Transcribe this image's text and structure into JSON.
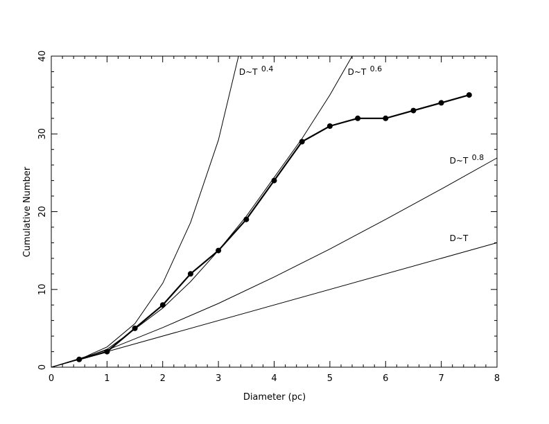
{
  "chart_data": {
    "type": "line",
    "xlabel": "Diameter (pc)",
    "ylabel": "Cumulative Number",
    "xlim": [
      0,
      8
    ],
    "ylim": [
      0,
      40
    ],
    "xticks": [
      "0",
      "1",
      "2",
      "3",
      "4",
      "5",
      "6",
      "7",
      "8"
    ],
    "yticks": [
      "0",
      "10",
      "20",
      "30",
      "40"
    ],
    "grid": false,
    "observed": {
      "x": [
        0.5,
        1.0,
        1.5,
        2.0,
        2.5,
        3.0,
        3.5,
        4.0,
        4.5,
        5.0,
        5.5,
        6.0,
        6.5,
        7.0,
        7.5
      ],
      "y": [
        1,
        2,
        5,
        8,
        12,
        15,
        19,
        24,
        29,
        31,
        32,
        32,
        33,
        34,
        35
      ]
    },
    "models": [
      {
        "label": "D~T",
        "exponent": "0.4",
        "x": [
          0,
          0.5,
          1.0,
          1.5,
          2.0,
          2.5,
          3.0,
          3.36
        ],
        "y": [
          0,
          1.0,
          2.6,
          5.6,
          10.8,
          18.6,
          29.2,
          40
        ]
      },
      {
        "label": "D~T",
        "exponent": "0.6",
        "x": [
          0,
          0.5,
          1.0,
          1.5,
          2.0,
          2.5,
          3.0,
          3.5,
          4.0,
          4.5,
          5.0,
          5.4
        ],
        "y": [
          0,
          1.0,
          2.3,
          4.9,
          7.6,
          11.0,
          15.0,
          19.4,
          24.4,
          29.4,
          35.0,
          40
        ]
      },
      {
        "label": "D~T",
        "exponent": "0.8",
        "x": [
          0,
          1,
          2,
          3,
          4,
          5,
          6,
          7,
          8
        ],
        "y": [
          0,
          2.2,
          5.1,
          8.2,
          11.6,
          15.2,
          19.0,
          22.9,
          26.9
        ]
      },
      {
        "label": "D~T",
        "exponent": "",
        "x": [
          0,
          8
        ],
        "y": [
          0,
          16
        ]
      }
    ]
  }
}
